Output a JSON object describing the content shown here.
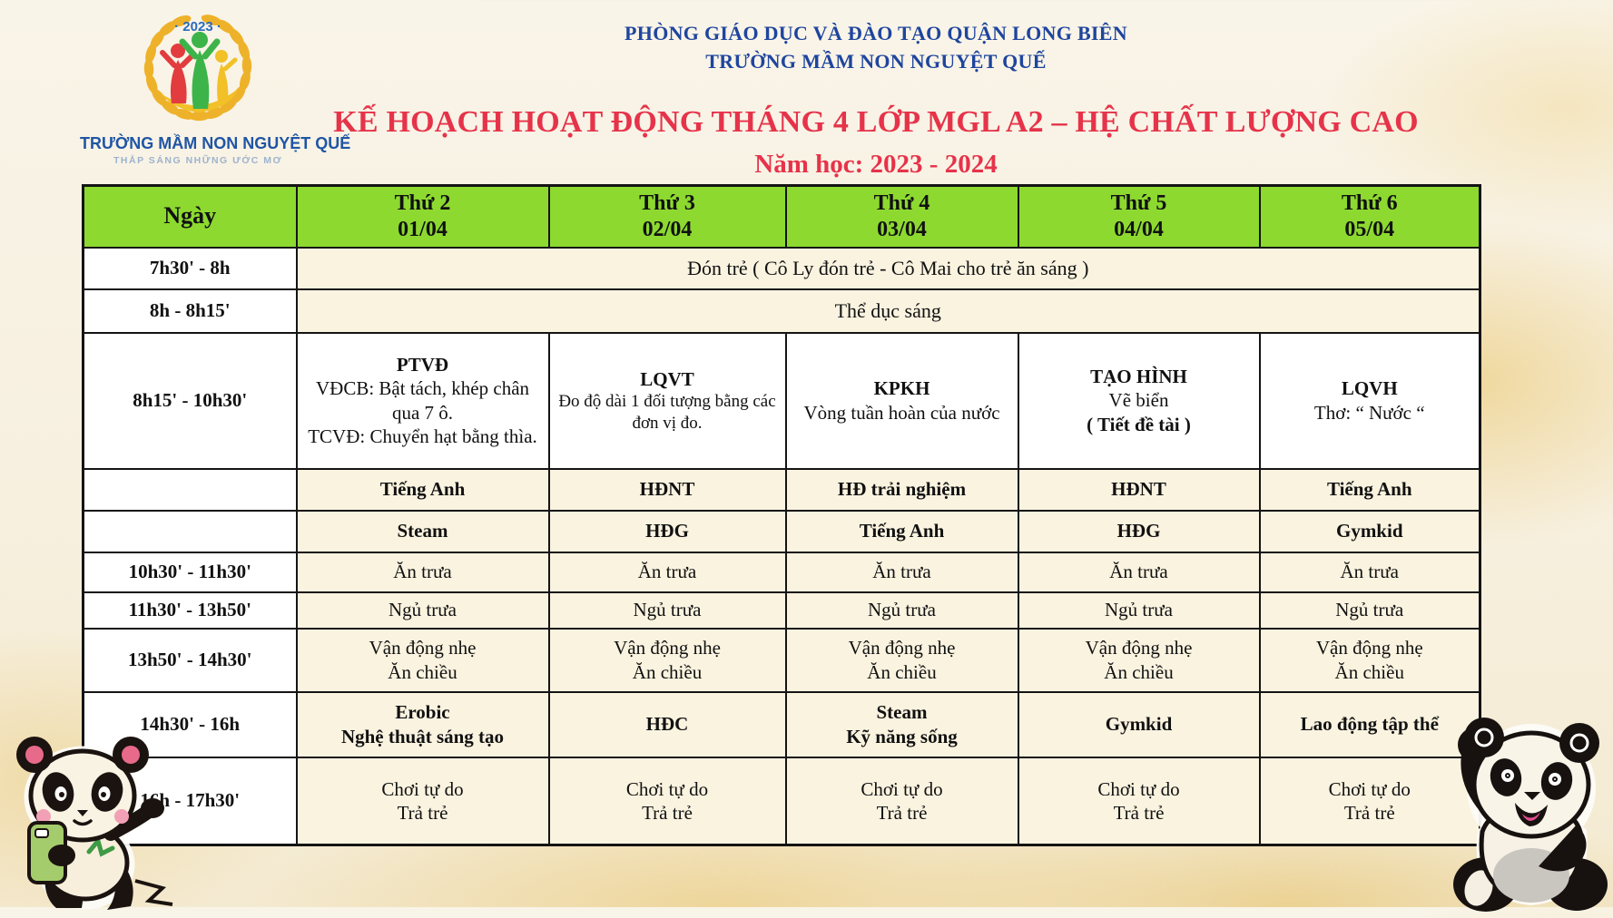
{
  "header": {
    "department": "PHÒNG GIÁO DỤC VÀ ĐÀO TẠO QUẬN LONG BIÊN",
    "school": "TRƯỜNG MẦM NON NGUYỆT QUẾ",
    "title": "KẾ HOẠCH HOẠT ĐỘNG THÁNG 4 LỚP MGL A2 – HỆ CHẤT LƯỢNG CAO",
    "school_year": "Năm học: 2023 - 2024"
  },
  "logo": {
    "year": "· 2023 ·",
    "school_name": "TRƯỜNG MẦM NON NGUYỆT QUẾ",
    "tagline": "THẮP SÁNG NHỮNG ƯỚC MƠ"
  },
  "colors": {
    "header_green": "#8dd930",
    "title_red": "#e6334a",
    "header_blue": "#1e459e",
    "cell_cream": "#faf3e0",
    "cell_white": "#ffffff",
    "border": "#141414",
    "background_gold": "#eed6a0"
  },
  "table": {
    "corner_label": "Ngày",
    "days": [
      {
        "name": "Thứ 2",
        "date": "01/04"
      },
      {
        "name": "Thứ 3",
        "date": "02/04"
      },
      {
        "name": "Thứ 4",
        "date": "03/04"
      },
      {
        "name": "Thứ 5",
        "date": "04/04"
      },
      {
        "name": "Thứ 6",
        "date": "05/04"
      }
    ],
    "rows": [
      {
        "time": "7h30' - 8h",
        "span": true,
        "text": "Đón trẻ ( Cô Ly đón trẻ - Cô Mai cho trẻ ăn sáng )"
      },
      {
        "time": "8h - 8h15'",
        "span": true,
        "text": "Thể dục sáng"
      },
      {
        "time": "8h15' - 10h30'",
        "white": true,
        "cells": [
          [
            {
              "t": "PTVĐ",
              "b": true
            },
            {
              "t": "VĐCB: Bật tách, khép chân qua 7 ô.",
              "b": false
            },
            {
              "t": "TCVĐ: Chuyển hạt bằng thìa.",
              "b": false
            }
          ],
          [
            {
              "t": "LQVT",
              "b": true
            },
            {
              "t": "Đo độ dài 1 đối tượng bằng các đơn vị đo.",
              "b": false,
              "s": true
            }
          ],
          [
            {
              "t": "KPKH",
              "b": true
            },
            {
              "t": "Vòng tuần hoàn của nước",
              "b": false
            }
          ],
          [
            {
              "t": "TẠO HÌNH",
              "b": true
            },
            {
              "t": "Vẽ biển",
              "b": false
            },
            {
              "t": "( Tiết đề tài )",
              "b": true
            }
          ],
          [
            {
              "t": "LQVH",
              "b": true
            },
            {
              "t": "Thơ: “ Nước “",
              "b": false
            }
          ]
        ]
      },
      {
        "time": "",
        "cells": [
          [
            {
              "t": "Tiếng Anh",
              "b": true
            }
          ],
          [
            {
              "t": "HĐNT",
              "b": true
            }
          ],
          [
            {
              "t": "HĐ trải nghiệm",
              "b": true
            }
          ],
          [
            {
              "t": "HĐNT",
              "b": true
            }
          ],
          [
            {
              "t": "Tiếng Anh",
              "b": true
            }
          ]
        ]
      },
      {
        "time": "",
        "cells": [
          [
            {
              "t": "Steam",
              "b": true
            }
          ],
          [
            {
              "t": "HĐG",
              "b": true
            }
          ],
          [
            {
              "t": "Tiếng Anh",
              "b": true
            }
          ],
          [
            {
              "t": "HĐG",
              "b": true
            }
          ],
          [
            {
              "t": "Gymkid",
              "b": true
            }
          ]
        ]
      },
      {
        "time": "10h30' - 11h30'",
        "cells": [
          [
            {
              "t": "Ăn trưa"
            }
          ],
          [
            {
              "t": "Ăn trưa"
            }
          ],
          [
            {
              "t": "Ăn trưa"
            }
          ],
          [
            {
              "t": "Ăn trưa"
            }
          ],
          [
            {
              "t": "Ăn trưa"
            }
          ]
        ]
      },
      {
        "time": "11h30' - 13h50'",
        "cells": [
          [
            {
              "t": "Ngủ trưa"
            }
          ],
          [
            {
              "t": "Ngủ trưa"
            }
          ],
          [
            {
              "t": "Ngủ trưa"
            }
          ],
          [
            {
              "t": "Ngủ trưa"
            }
          ],
          [
            {
              "t": "Ngủ trưa"
            }
          ]
        ]
      },
      {
        "time": "13h50' - 14h30'",
        "cells": [
          [
            {
              "t": "Vận động nhẹ"
            },
            {
              "t": "Ăn chiều"
            }
          ],
          [
            {
              "t": "Vận động nhẹ"
            },
            {
              "t": "Ăn chiều"
            }
          ],
          [
            {
              "t": "Vận động nhẹ"
            },
            {
              "t": "Ăn chiều"
            }
          ],
          [
            {
              "t": "Vận động nhẹ"
            },
            {
              "t": "Ăn chiều"
            }
          ],
          [
            {
              "t": "Vận động nhẹ"
            },
            {
              "t": "Ăn chiều"
            }
          ]
        ]
      },
      {
        "time": "14h30' - 16h",
        "cells": [
          [
            {
              "t": "Erobic",
              "b": true
            },
            {
              "t": "Nghệ thuật sáng tạo",
              "b": true
            }
          ],
          [
            {
              "t": "HĐC",
              "b": true
            }
          ],
          [
            {
              "t": "Steam",
              "b": true
            },
            {
              "t": "Kỹ năng sống",
              "b": true
            }
          ],
          [
            {
              "t": "Gymkid",
              "b": true
            }
          ],
          [
            {
              "t": "Lao động tập thể",
              "b": true
            }
          ]
        ]
      },
      {
        "time": "16h - 17h30'",
        "cells": [
          [
            {
              "t": "Chơi tự do"
            },
            {
              "t": "Trả trẻ"
            }
          ],
          [
            {
              "t": "Chơi tự do"
            },
            {
              "t": "Trả trẻ"
            }
          ],
          [
            {
              "t": "Chơi tự do"
            },
            {
              "t": "Trả trẻ"
            }
          ],
          [
            {
              "t": "Chơi tự do"
            },
            {
              "t": "Trả trẻ"
            }
          ],
          [
            {
              "t": "Chơi tự do"
            },
            {
              "t": "Trả trẻ"
            }
          ]
        ]
      }
    ]
  }
}
